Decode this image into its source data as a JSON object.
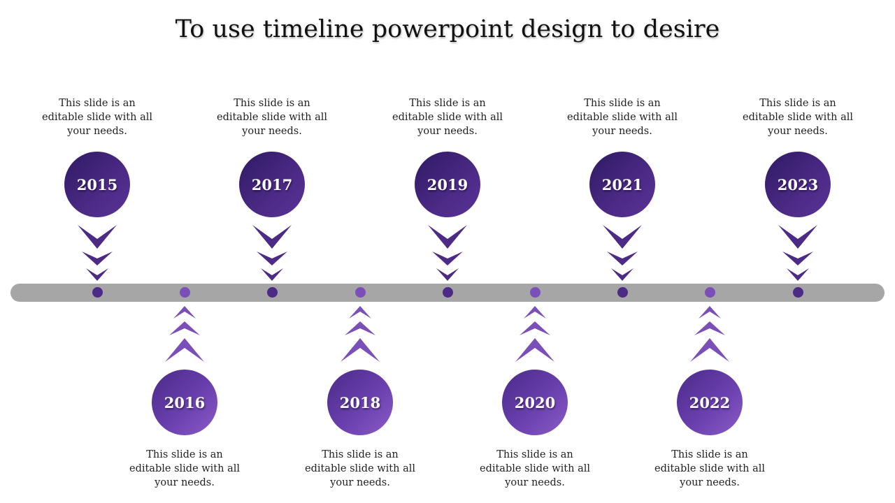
{
  "title": "To use timeline powerpoint design to desire",
  "colors": {
    "bar": "#a6a6a6",
    "purple_dark": "#4c2a86",
    "purple_light": "#7b4fb8"
  },
  "milestones": [
    {
      "year": "2015",
      "text": "This slide is an editable slide with all your needs.",
      "position": "top"
    },
    {
      "year": "2016",
      "text": "This slide is an editable slide with all your needs.",
      "position": "bottom"
    },
    {
      "year": "2017",
      "text": "This slide is an editable slide with all your needs.",
      "position": "top"
    },
    {
      "year": "2018",
      "text": "This slide is an editable slide with all your needs.",
      "position": "bottom"
    },
    {
      "year": "2019",
      "text": "This slide is an editable slide with all your needs.",
      "position": "top"
    },
    {
      "year": "2020",
      "text": "This slide is an editable slide with all your needs.",
      "position": "bottom"
    },
    {
      "year": "2021",
      "text": "This slide is an editable slide with all your needs.",
      "position": "top"
    },
    {
      "year": "2022",
      "text": "This slide is an editable slide with all your needs.",
      "position": "bottom"
    },
    {
      "year": "2023",
      "text": "This slide is an editable slide with all your needs.",
      "position": "top"
    }
  ]
}
